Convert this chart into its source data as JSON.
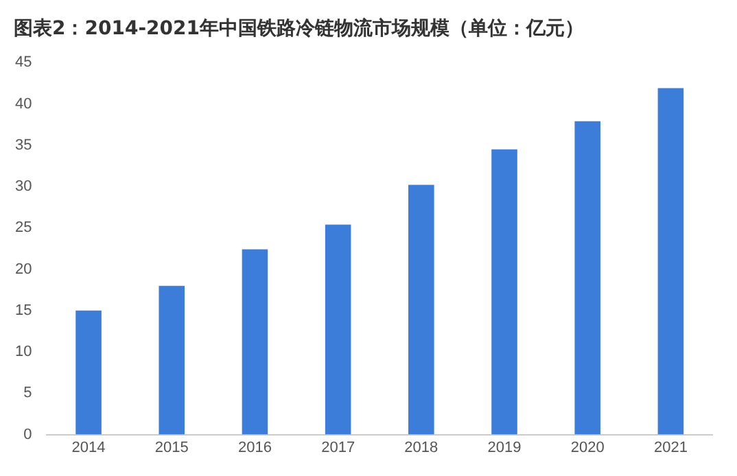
{
  "chart_data": {
    "type": "bar",
    "title": "图表2：2014-2021年中国铁路冷链物流市场规模（单位：亿元）",
    "categories": [
      "2014",
      "2015",
      "2016",
      "2017",
      "2018",
      "2019",
      "2020",
      "2021"
    ],
    "values": [
      15,
      18,
      22.4,
      25.4,
      30.2,
      34.5,
      37.9,
      41.9
    ],
    "color": "#3b7dd8",
    "ylim": [
      0,
      45
    ],
    "yticks": [
      0,
      5,
      10,
      15,
      20,
      25,
      30,
      35,
      40,
      45
    ],
    "grid": false,
    "legend": false
  }
}
